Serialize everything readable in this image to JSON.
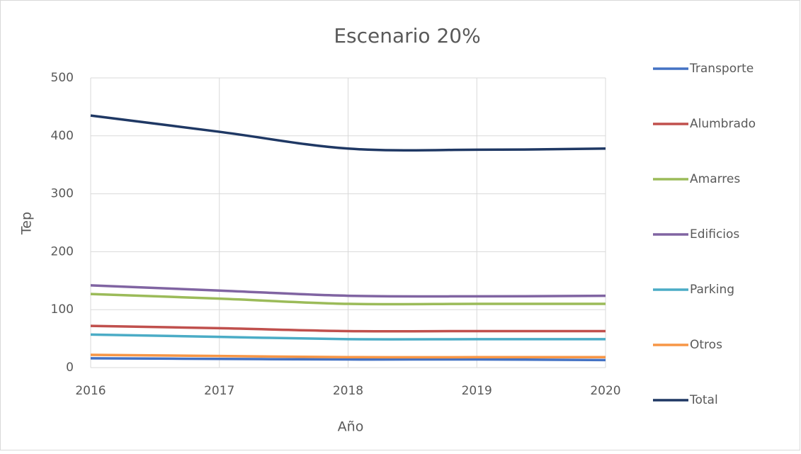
{
  "chart_data": {
    "type": "line",
    "title": "Escenario 20%",
    "xlabel": "Año",
    "ylabel": "Tep",
    "x": [
      2016,
      2017,
      2018,
      2019,
      2020
    ],
    "xlim": [
      2016,
      2020
    ],
    "xticks": [
      2016,
      2017,
      2018,
      2019,
      2020
    ],
    "ylim": [
      0,
      500
    ],
    "yticks": [
      0,
      100,
      200,
      300,
      400,
      500
    ],
    "grid": true,
    "legend": "right",
    "series": [
      {
        "name": "Transporte",
        "color": "#4472c4",
        "values": [
          16,
          15,
          14,
          14,
          13
        ]
      },
      {
        "name": "Alumbrado",
        "color": "#c0504d",
        "values": [
          72,
          68,
          63,
          63,
          63
        ]
      },
      {
        "name": "Amarres",
        "color": "#9bbb59",
        "values": [
          127,
          119,
          110,
          110,
          110
        ]
      },
      {
        "name": "Edificios",
        "color": "#8064a2",
        "values": [
          142,
          133,
          124,
          123,
          124
        ]
      },
      {
        "name": "Parking",
        "color": "#4bacc6",
        "values": [
          57,
          53,
          49,
          49,
          49
        ]
      },
      {
        "name": "Otros",
        "color": "#f79646",
        "values": [
          22,
          20,
          18,
          18,
          18
        ]
      },
      {
        "name": "Total",
        "color": "#1f3864",
        "values": [
          435,
          407,
          378,
          376,
          378
        ]
      }
    ]
  }
}
